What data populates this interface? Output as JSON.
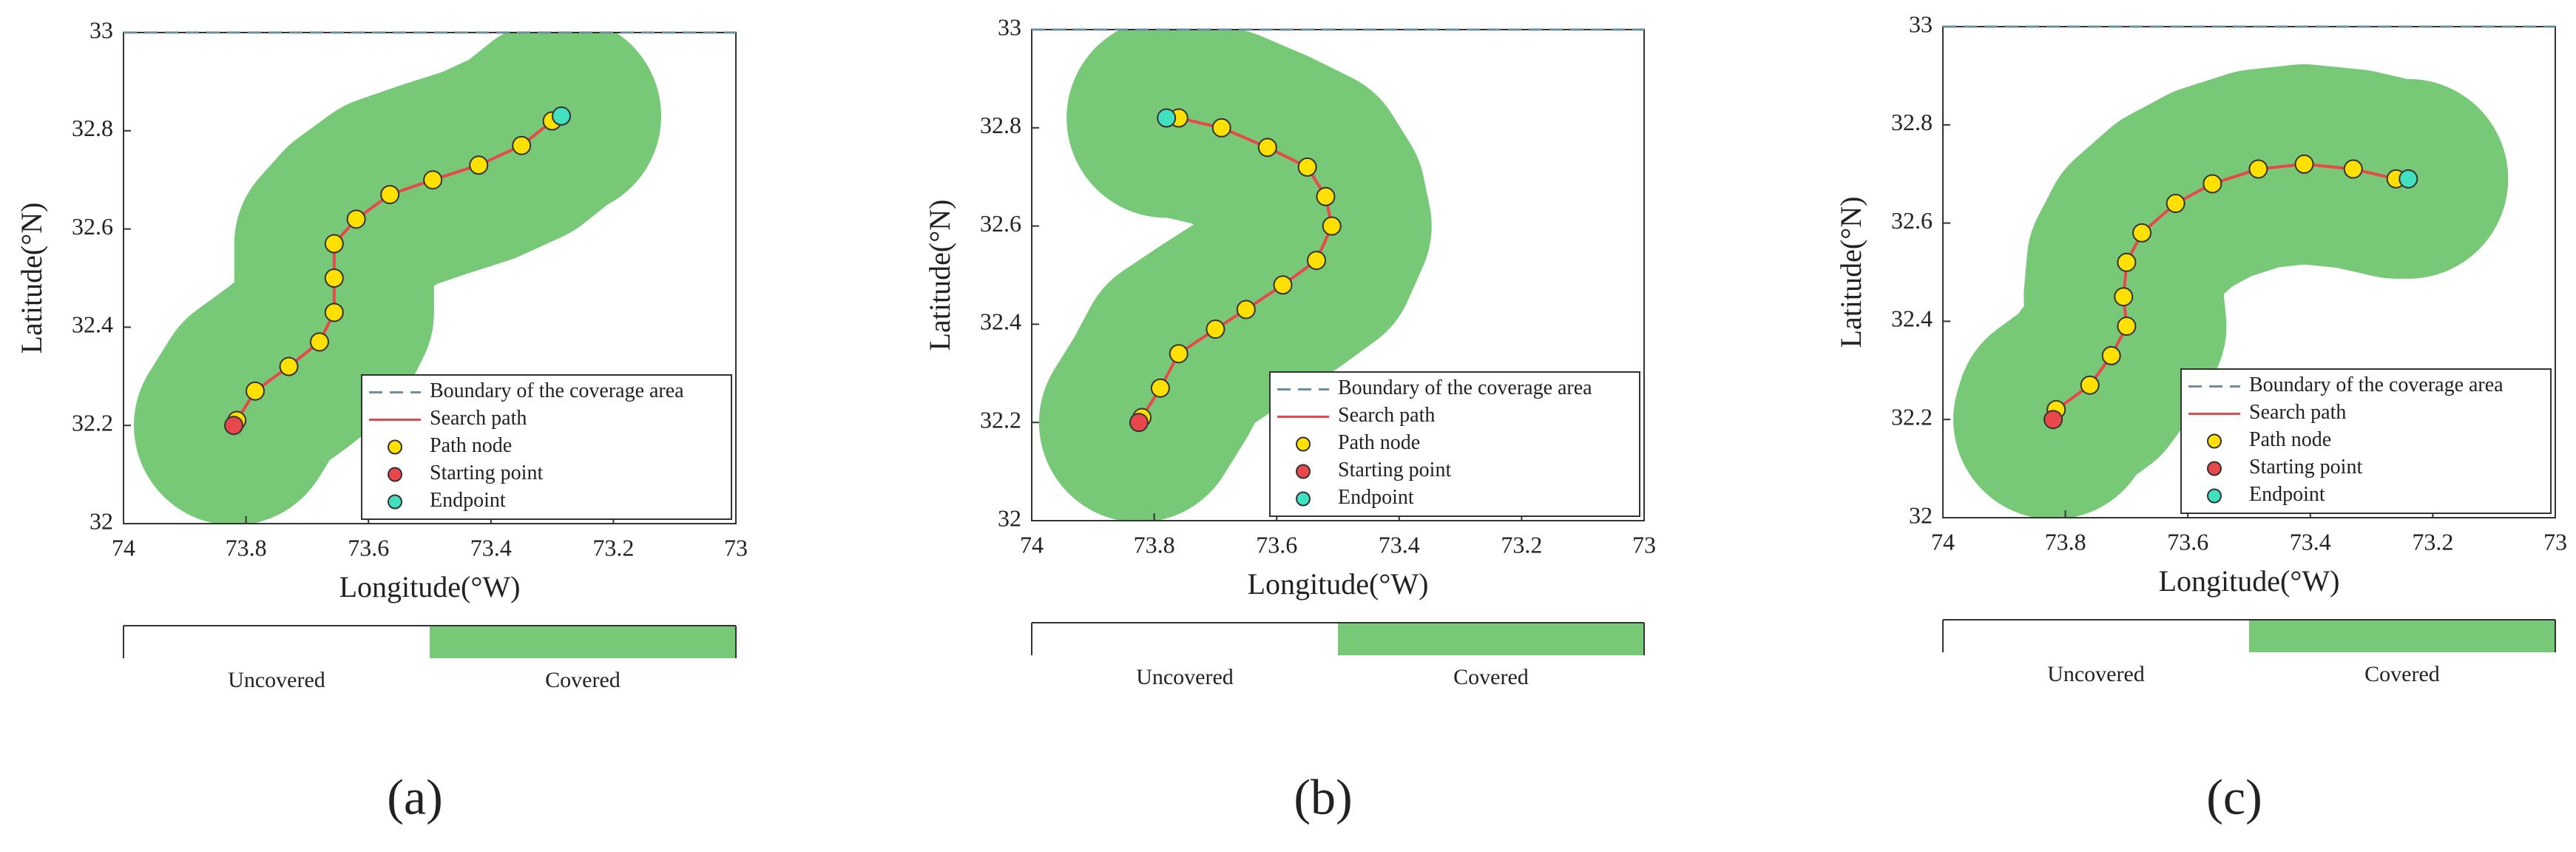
{
  "chart_data": [
    {
      "type": "line",
      "panel_label": "(a)",
      "xlabel": "Longitude(°W)",
      "ylabel": "Latitude(°N)",
      "xlim": [
        74,
        73
      ],
      "ylim": [
        32,
        33
      ],
      "xticks": [
        74,
        73.8,
        73.6,
        73.4,
        73.2,
        73
      ],
      "yticks": [
        32,
        32.2,
        32.4,
        32.6,
        32.8,
        33
      ],
      "legend": "lower right",
      "colorbar": {
        "labels": [
          "Uncovered",
          "Covered"
        ],
        "colors": [
          "#ffffff",
          "#77c977"
        ]
      },
      "series": [
        {
          "name": "Boundary of the coverage area",
          "color": "#6a8fa0",
          "style": "dashed",
          "x": [
            74,
            73
          ],
          "values": [
            33,
            33
          ]
        },
        {
          "name": "Search path",
          "color": "#e8474c",
          "style": "solid",
          "x": [
            73.82,
            73.815,
            73.785,
            73.73,
            73.68,
            73.656,
            73.656,
            73.656,
            73.62,
            73.565,
            73.495,
            73.42,
            73.35,
            73.3,
            73.285
          ],
          "values": [
            32.2,
            32.21,
            32.27,
            32.32,
            32.37,
            32.43,
            32.5,
            32.57,
            32.62,
            32.67,
            32.7,
            32.73,
            32.77,
            32.82,
            32.83
          ]
        },
        {
          "name": "Path node",
          "color": "#ffe000",
          "marker": "circle",
          "x": [
            73.815,
            73.785,
            73.73,
            73.68,
            73.656,
            73.656,
            73.656,
            73.62,
            73.565,
            73.495,
            73.42,
            73.35,
            73.3
          ],
          "values": [
            32.21,
            32.27,
            32.32,
            32.37,
            32.43,
            32.5,
            32.57,
            32.62,
            32.67,
            32.7,
            32.73,
            32.77,
            32.82
          ]
        },
        {
          "name": "Starting point",
          "color": "#e8474c",
          "marker": "circle",
          "x": [
            73.82
          ],
          "values": [
            32.2
          ]
        },
        {
          "name": "Endpoint",
          "color": "#40e0c0",
          "marker": "circle",
          "x": [
            73.285
          ],
          "values": [
            32.83
          ]
        }
      ]
    },
    {
      "type": "line",
      "panel_label": "(b)",
      "xlabel": "Longitude(°W)",
      "ylabel": "Latitude(°N)",
      "xlim": [
        74,
        73
      ],
      "ylim": [
        32,
        33
      ],
      "xticks": [
        74,
        73.8,
        73.6,
        73.4,
        73.2,
        73
      ],
      "yticks": [
        32,
        32.2,
        32.4,
        32.6,
        32.8,
        33
      ],
      "legend": "lower right",
      "colorbar": {
        "labels": [
          "Uncovered",
          "Covered"
        ],
        "colors": [
          "#ffffff",
          "#77c977"
        ]
      },
      "series": [
        {
          "name": "Boundary of the coverage area",
          "color": "#6a8fa0",
          "style": "dashed",
          "x": [
            74,
            73
          ],
          "values": [
            33,
            33
          ]
        },
        {
          "name": "Search path",
          "color": "#e8474c",
          "style": "solid",
          "x": [
            73.825,
            73.82,
            73.79,
            73.76,
            73.7,
            73.65,
            73.59,
            73.535,
            73.51,
            73.52,
            73.55,
            73.615,
            73.69,
            73.76,
            73.78
          ],
          "values": [
            32.2,
            32.21,
            32.27,
            32.34,
            32.39,
            32.43,
            32.48,
            32.53,
            32.6,
            32.66,
            32.72,
            32.76,
            32.8,
            32.82,
            32.82
          ]
        },
        {
          "name": "Path node",
          "color": "#ffe000",
          "marker": "circle",
          "x": [
            73.82,
            73.79,
            73.76,
            73.7,
            73.65,
            73.59,
            73.535,
            73.51,
            73.52,
            73.55,
            73.615,
            73.69,
            73.76
          ],
          "values": [
            32.21,
            32.27,
            32.34,
            32.39,
            32.43,
            32.48,
            32.53,
            32.6,
            32.66,
            32.72,
            32.76,
            32.8,
            32.82
          ]
        },
        {
          "name": "Starting point",
          "color": "#e8474c",
          "marker": "circle",
          "x": [
            73.825
          ],
          "values": [
            32.2
          ]
        },
        {
          "name": "Endpoint",
          "color": "#40e0c0",
          "marker": "circle",
          "x": [
            73.78
          ],
          "values": [
            32.82
          ]
        }
      ]
    },
    {
      "type": "line",
      "panel_label": "(c)",
      "xlabel": "Longitude(°W)",
      "ylabel": "Latitude(°N)",
      "xlim": [
        74,
        73
      ],
      "ylim": [
        32,
        33
      ],
      "xticks": [
        74,
        73.8,
        73.6,
        73.4,
        73.2,
        73
      ],
      "yticks": [
        32,
        32.2,
        32.4,
        32.6,
        32.8,
        33
      ],
      "legend": "lower right",
      "colorbar": {
        "labels": [
          "Uncovered",
          "Covered"
        ],
        "colors": [
          "#ffffff",
          "#77c977"
        ]
      },
      "series": [
        {
          "name": "Boundary of the coverage area",
          "color": "#6a8fa0",
          "style": "dashed",
          "x": [
            74,
            73
          ],
          "values": [
            33,
            33
          ]
        },
        {
          "name": "Search path",
          "color": "#e8474c",
          "style": "solid",
          "x": [
            73.82,
            73.815,
            73.76,
            73.725,
            73.7,
            73.705,
            73.7,
            73.675,
            73.62,
            73.56,
            73.485,
            73.41,
            73.33,
            73.26,
            73.24
          ],
          "values": [
            32.2,
            32.22,
            32.27,
            32.33,
            32.39,
            32.45,
            32.52,
            32.58,
            32.64,
            32.68,
            32.71,
            32.72,
            32.71,
            32.69,
            32.69
          ]
        },
        {
          "name": "Path node",
          "color": "#ffe000",
          "marker": "circle",
          "x": [
            73.815,
            73.76,
            73.725,
            73.7,
            73.705,
            73.7,
            73.675,
            73.62,
            73.56,
            73.485,
            73.41,
            73.33,
            73.26
          ],
          "values": [
            32.22,
            32.27,
            32.33,
            32.39,
            32.45,
            32.52,
            32.58,
            32.64,
            32.68,
            32.71,
            32.72,
            32.71,
            32.69
          ]
        },
        {
          "name": "Starting point",
          "color": "#e8474c",
          "marker": "circle",
          "x": [
            73.82
          ],
          "values": [
            32.2
          ]
        },
        {
          "name": "Endpoint",
          "color": "#40e0c0",
          "marker": "circle",
          "x": [
            73.24
          ],
          "values": [
            32.69
          ]
        }
      ]
    }
  ]
}
